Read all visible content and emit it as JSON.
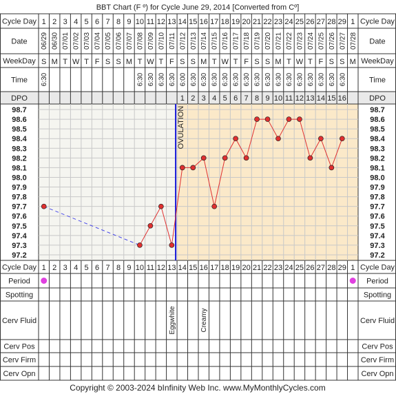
{
  "title": "BBT Chart (F º) for Cycle June 29, 2014  [Converted from Cº]",
  "footer": "Copyright © 2003-2024 bInfinity Web Inc.    www.MyMonthlyCycles.com",
  "row_labels": {
    "cycle_day": "Cycle Day",
    "date": "Date",
    "weekday": "WeekDay",
    "time": "Time",
    "dpo": "DPO",
    "period": "Period",
    "spotting": "Spotting",
    "cerv_fluid": "Cerv Fluid",
    "cerv_pos": "Cerv Pos",
    "cerv_firm": "Cerv Firm",
    "cerv_opn": "Cerv Opn"
  },
  "cycle_days": [
    "1",
    "2",
    "3",
    "4",
    "5",
    "6",
    "7",
    "8",
    "9",
    "10",
    "11",
    "12",
    "13",
    "14",
    "15",
    "16",
    "17",
    "18",
    "19",
    "20",
    "21",
    "22",
    "23",
    "24",
    "25",
    "26",
    "27",
    "28",
    "29",
    "1"
  ],
  "dates": [
    "06/29",
    "06/30",
    "07/01",
    "07/02",
    "07/03",
    "07/04",
    "07/05",
    "07/06",
    "07/07",
    "07/08",
    "07/09",
    "07/10",
    "07/11",
    "07/12",
    "07/13",
    "07/14",
    "07/15",
    "07/16",
    "07/17",
    "07/18",
    "07/19",
    "07/20",
    "07/21",
    "07/22",
    "07/23",
    "07/24",
    "07/25",
    "07/26",
    "07/27",
    "07/28"
  ],
  "weekdays": [
    "S",
    "M",
    "T",
    "W",
    "T",
    "F",
    "S",
    "S",
    "M",
    "T",
    "W",
    "T",
    "F",
    "S",
    "S",
    "M",
    "T",
    "W",
    "T",
    "F",
    "S",
    "S",
    "M",
    "T",
    "W",
    "T",
    "F",
    "S",
    "S",
    "M"
  ],
  "times": [
    "6:30",
    "",
    "",
    "",
    "",
    "",
    "",
    "",
    "",
    "6:30",
    "6:30",
    "6:30",
    "6:30",
    "6:00",
    "6:30",
    "6:30",
    "6:30",
    "6:30",
    "6:30",
    "6:30",
    "6:30",
    "6:30",
    "6:30",
    "6:30",
    "6:30",
    "6:30",
    "6:30",
    "6:30",
    "6:30",
    ""
  ],
  "dpo": [
    "",
    "",
    "",
    "",
    "",
    "",
    "",
    "",
    "",
    "",
    "",
    "",
    "",
    "1",
    "2",
    "3",
    "4",
    "5",
    "6",
    "7",
    "8",
    "9",
    "10",
    "11",
    "12",
    "13",
    "14",
    "15",
    "16",
    ""
  ],
  "period": [
    true,
    false,
    false,
    false,
    false,
    false,
    false,
    false,
    false,
    false,
    false,
    false,
    false,
    false,
    false,
    false,
    false,
    false,
    false,
    false,
    false,
    false,
    false,
    false,
    false,
    false,
    false,
    false,
    false,
    true
  ],
  "cerv_fluid": [
    "",
    "",
    "",
    "",
    "",
    "",
    "",
    "",
    "",
    "",
    "",
    "",
    "Eggwhite",
    "",
    "",
    "Creamy",
    "",
    "",
    "",
    "",
    "",
    "",
    "",
    "",
    "",
    "",
    "",
    "",
    "",
    ""
  ],
  "ovulation_label": "OVULATION",
  "colors": {
    "line": "#e03030",
    "point": "#e03030",
    "interpolated": "#4a4ae8",
    "ovulation_line": "#1a1ad8",
    "post_ov_bg": "#fbe9c9",
    "pre_ov_bg": "#f5f5f0",
    "period_dot": "#e040e0"
  },
  "chart_data": {
    "type": "line",
    "title": "BBT Chart (F º) for Cycle June 29, 2014  [Converted from Cº]",
    "y_ticks": [
      "98.7",
      "98.6",
      "98.5",
      "98.4",
      "98.3",
      "98.2",
      "98.1",
      "98.0",
      "97.9",
      "97.8",
      "97.7",
      "97.6",
      "97.5",
      "97.4",
      "97.3",
      "97.2"
    ],
    "ylim": [
      97.2,
      98.7
    ],
    "x_categories": [
      "1",
      "2",
      "3",
      "4",
      "5",
      "6",
      "7",
      "8",
      "9",
      "10",
      "11",
      "12",
      "13",
      "14",
      "15",
      "16",
      "17",
      "18",
      "19",
      "20",
      "21",
      "22",
      "23",
      "24",
      "25",
      "26",
      "27",
      "28",
      "29",
      "1"
    ],
    "temps": [
      97.7,
      null,
      null,
      null,
      null,
      null,
      null,
      null,
      null,
      97.3,
      97.5,
      97.7,
      97.3,
      98.1,
      98.1,
      98.2,
      97.7,
      98.2,
      98.4,
      98.2,
      98.6,
      98.6,
      98.4,
      98.6,
      98.6,
      98.2,
      98.4,
      98.1,
      98.4,
      null
    ],
    "interpolated_segment": [
      1,
      10
    ],
    "ovulation_day_index": 12,
    "grid": true
  }
}
